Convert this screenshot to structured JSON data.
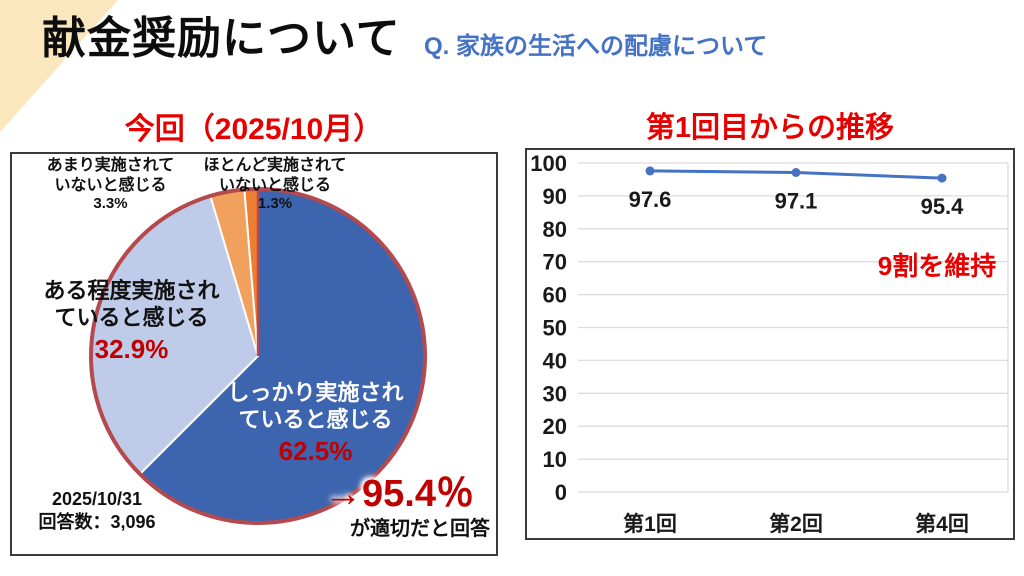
{
  "page": {
    "title": "献金奨励について",
    "subtitle": "Q. 家族の生活への配慮について"
  },
  "colors": {
    "accent_red": "#E60000",
    "value_red": "#C00000",
    "subtitle_blue": "#4472C4",
    "pie_ring": "#B44A4E",
    "gridline": "#DCDCDC",
    "corner_decoration": "#FAE7BD"
  },
  "chart_data": [
    {
      "type": "pie",
      "title": "今回（2025/10月）",
      "slices": [
        {
          "label": "しっかり実施され\nていると感じる",
          "pct_label": "62.5%",
          "value": 62.5,
          "color": "#3D64AE"
        },
        {
          "label": "ある程度実施され\nていると感じる",
          "pct_label": "32.9%",
          "value": 32.9,
          "color": "#BECBE9"
        },
        {
          "label": "あまり実施されて\nいないと感じる",
          "pct_label": "3.3%",
          "value": 3.3,
          "color": "#F2A05D"
        },
        {
          "label": "ほとんど実施されて\nいないと感じる",
          "pct_label": "1.3%",
          "value": 1.3,
          "color": "#ED7D31"
        }
      ],
      "footnote": {
        "date": "2025/10/31",
        "responses": "回答数：3,096"
      },
      "callout": {
        "value": "→95.4％",
        "caption": "が適切だと回答"
      }
    },
    {
      "type": "line",
      "title": "第1回目からの推移",
      "categories": [
        "第1回",
        "第2回",
        "第4回"
      ],
      "values": [
        97.6,
        97.1,
        95.4
      ],
      "value_labels": [
        "97.6",
        "97.1",
        "95.4"
      ],
      "ylim": [
        0,
        100
      ],
      "ytick_step": 10,
      "grid": "horizontal",
      "legend": "none",
      "annotation": "9割を維持",
      "line_color": "#4472C4"
    }
  ]
}
